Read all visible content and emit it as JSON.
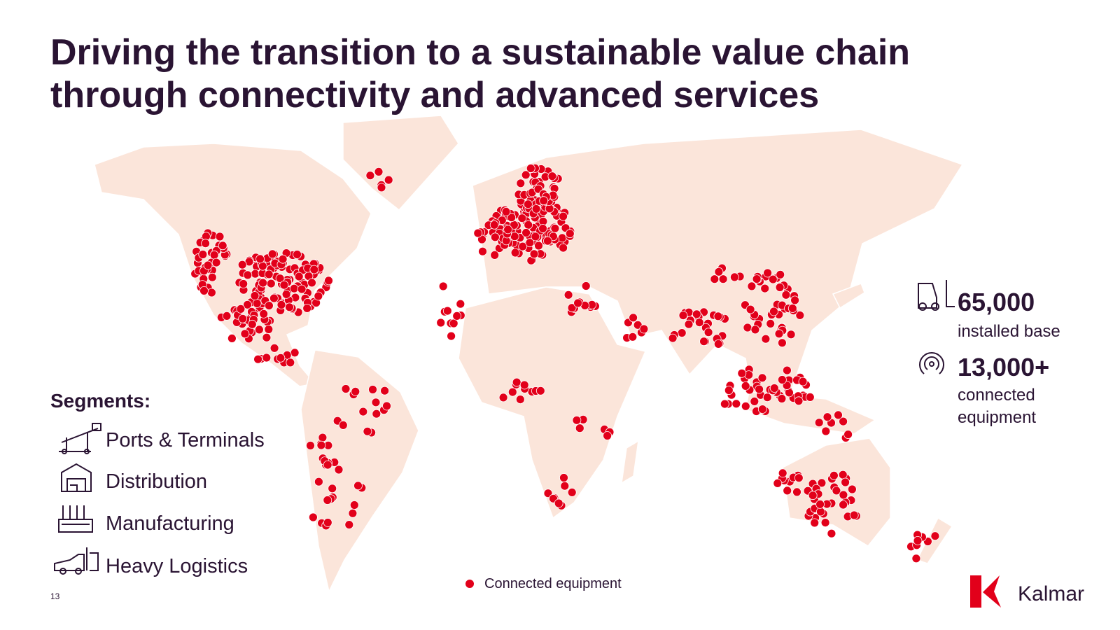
{
  "slide": {
    "title_lines": [
      "Driving the transition to a sustainable value chain",
      "through connectivity and advanced services"
    ],
    "segments": {
      "heading": "Segments:",
      "items": [
        "Ports & Terminals",
        "Distribution",
        "Manufacturing",
        "Heavy Logistics"
      ]
    },
    "stats": [
      {
        "value": "65,000",
        "label_lines": [
          "installed base"
        ]
      },
      {
        "value": "13,000+",
        "label_lines": [
          "connected",
          "equipment"
        ]
      }
    ],
    "legend": "Connected equipment",
    "page_number": "13",
    "logo": "Kalmar"
  }
}
